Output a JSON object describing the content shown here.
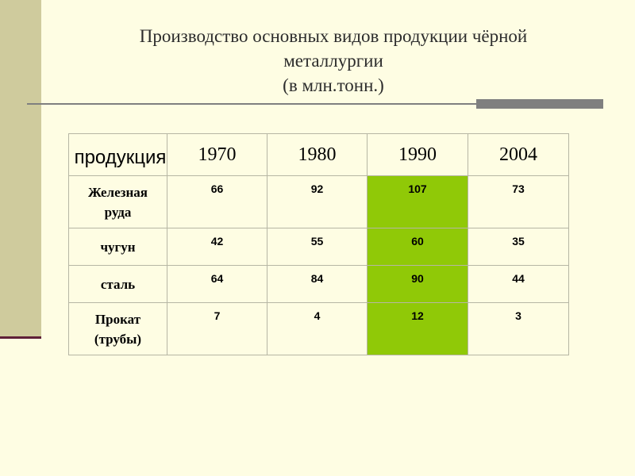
{
  "title": {
    "line1": "Производство основных видов продукции чёрной",
    "line2": "металлургии",
    "line3": "(в млн.тонн.)"
  },
  "table": {
    "product_header": "продукция",
    "years": [
      "1970",
      "1980",
      "1990",
      "2004"
    ],
    "highlight_color": "#90c907",
    "highlight_year": "1990",
    "rows": [
      {
        "label_lines": [
          "Железная",
          "руда"
        ],
        "values": [
          "66",
          "92",
          "107",
          "73"
        ]
      },
      {
        "label_lines": [
          "чугун"
        ],
        "values": [
          "42",
          "55",
          "60",
          "35"
        ]
      },
      {
        "label_lines": [
          "сталь"
        ],
        "values": [
          "64",
          "84",
          "90",
          "44"
        ]
      },
      {
        "label_lines": [
          "Прокат",
          "(трубы)"
        ],
        "values": [
          "7",
          "4",
          "12",
          "3"
        ]
      }
    ]
  }
}
